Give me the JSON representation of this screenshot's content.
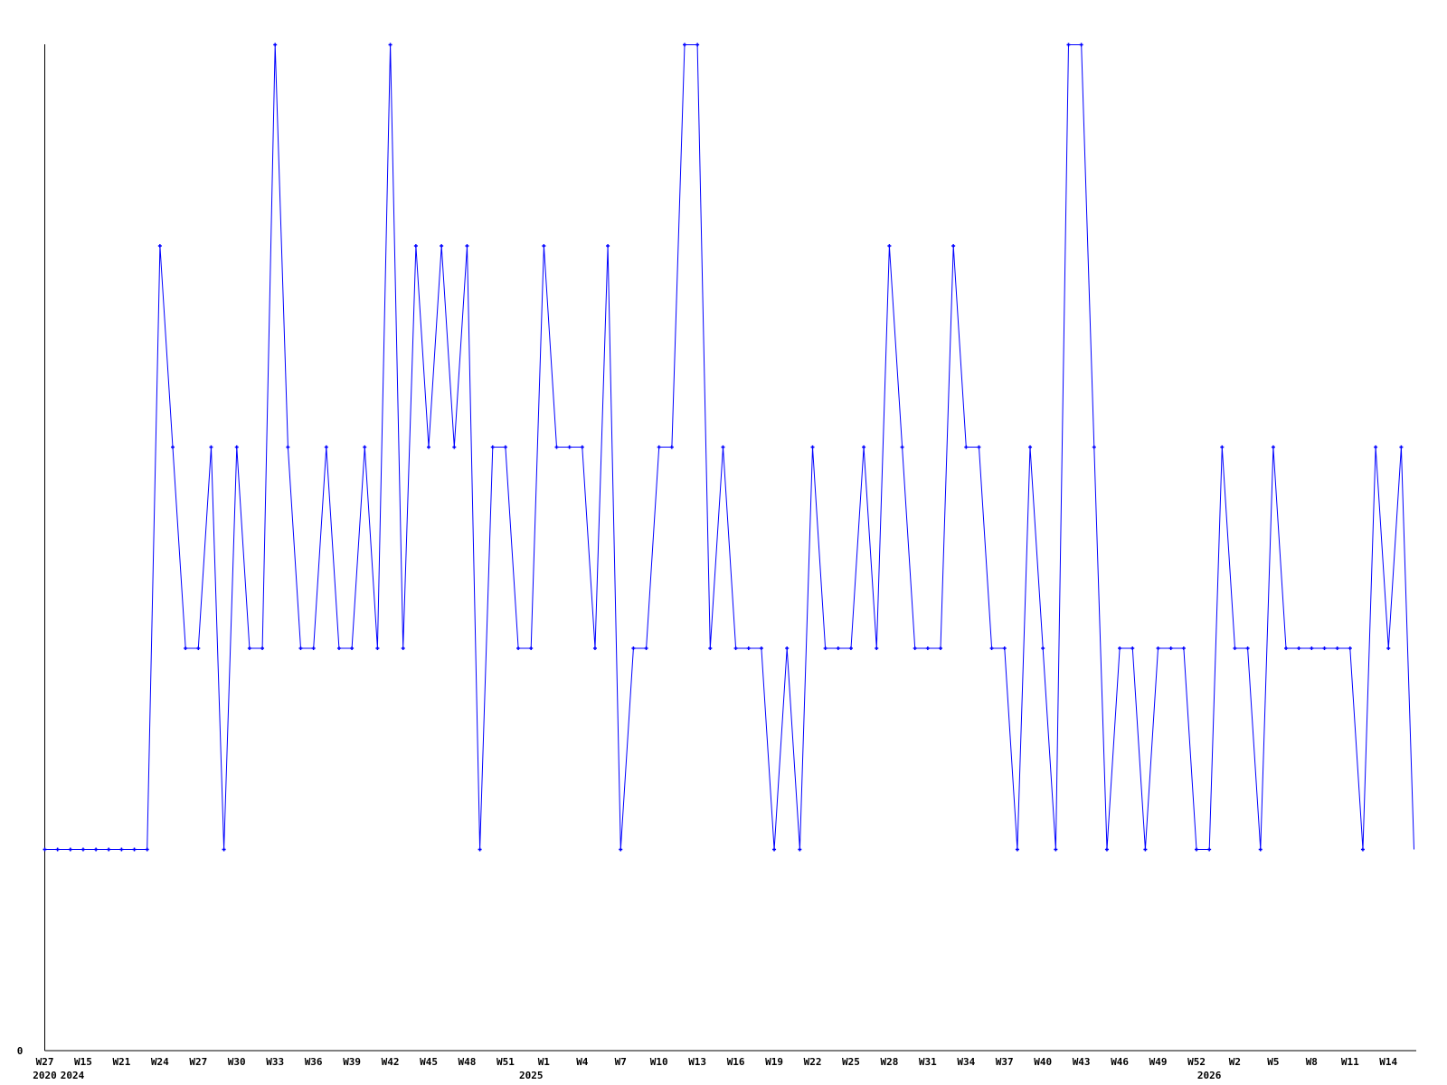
{
  "chart_data": {
    "type": "line",
    "title": "",
    "xlabel": "",
    "ylabel": "",
    "y_tick_labels": [
      "0"
    ],
    "ylim": [
      0,
      5
    ],
    "grid": false,
    "line_color": "#0000ff",
    "axis_color": "#000000",
    "values": [
      1,
      1,
      1,
      1,
      1,
      1,
      1,
      1,
      1,
      4,
      3,
      2,
      2,
      3,
      1,
      3,
      2,
      2,
      5,
      3,
      2,
      2,
      3,
      2,
      2,
      3,
      2,
      5,
      2,
      4,
      3,
      4,
      3,
      4,
      1,
      3,
      3,
      2,
      2,
      4,
      3,
      3,
      3,
      2,
      4,
      1,
      2,
      2,
      3,
      3,
      5,
      5,
      2,
      3,
      2,
      2,
      2,
      1,
      2,
      1,
      3,
      2,
      2,
      2,
      3,
      2,
      4,
      3,
      2,
      2,
      2,
      4,
      3,
      3,
      2,
      2,
      1,
      3,
      2,
      1,
      5,
      5,
      3,
      1,
      2,
      2,
      1,
      2,
      2,
      2,
      1,
      1,
      3,
      2,
      2,
      1,
      3,
      2,
      2,
      2,
      2,
      2,
      2,
      1,
      3,
      2,
      3,
      1
    ],
    "x_ticks": [
      {
        "i": 0,
        "label": "W27"
      },
      {
        "i": 3,
        "label": "W15"
      },
      {
        "i": 6,
        "label": "W21"
      },
      {
        "i": 9,
        "label": "W24"
      },
      {
        "i": 12,
        "label": "W27"
      },
      {
        "i": 15,
        "label": "W30"
      },
      {
        "i": 18,
        "label": "W33"
      },
      {
        "i": 21,
        "label": "W36"
      },
      {
        "i": 24,
        "label": "W39"
      },
      {
        "i": 27,
        "label": "W42"
      },
      {
        "i": 30,
        "label": "W45"
      },
      {
        "i": 33,
        "label": "W48"
      },
      {
        "i": 36,
        "label": "W51"
      },
      {
        "i": 39,
        "label": "W1"
      },
      {
        "i": 42,
        "label": "W4"
      },
      {
        "i": 45,
        "label": "W7"
      },
      {
        "i": 48,
        "label": "W10"
      },
      {
        "i": 51,
        "label": "W13"
      },
      {
        "i": 54,
        "label": "W16"
      },
      {
        "i": 57,
        "label": "W19"
      },
      {
        "i": 60,
        "label": "W22"
      },
      {
        "i": 63,
        "label": "W25"
      },
      {
        "i": 66,
        "label": "W28"
      },
      {
        "i": 69,
        "label": "W31"
      },
      {
        "i": 72,
        "label": "W34"
      },
      {
        "i": 75,
        "label": "W37"
      },
      {
        "i": 78,
        "label": "W40"
      },
      {
        "i": 81,
        "label": "W43"
      },
      {
        "i": 84,
        "label": "W46"
      },
      {
        "i": 87,
        "label": "W49"
      },
      {
        "i": 90,
        "label": "W52"
      },
      {
        "i": 93,
        "label": "W2"
      },
      {
        "i": 96,
        "label": "W5"
      },
      {
        "i": 99,
        "label": "W8"
      },
      {
        "i": 102,
        "label": "W11"
      },
      {
        "i": 105,
        "label": "W14"
      }
    ],
    "year_labels": [
      {
        "i": 0,
        "label": "2020"
      },
      {
        "i": 1,
        "label": "2024"
      },
      {
        "i": 38,
        "label": "2025"
      },
      {
        "i": 91,
        "label": "2026"
      }
    ]
  }
}
